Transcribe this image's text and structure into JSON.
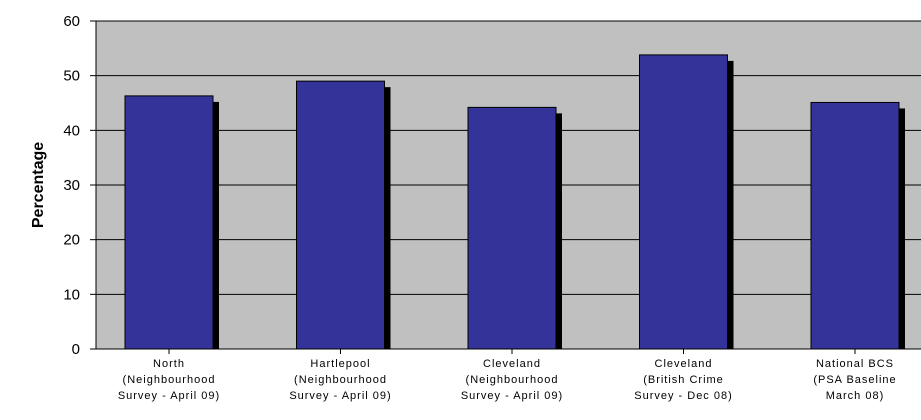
{
  "chart_data": {
    "type": "bar",
    "categories": [
      [
        "North",
        "(Neighbourhood",
        "Survey - April 09)"
      ],
      [
        "Hartlepool",
        "(Neighbourhood",
        "Survey - April 09)"
      ],
      [
        "Cleveland",
        "(Neighbourhood",
        "Survey - April 09)"
      ],
      [
        "Cleveland",
        "(British Crime",
        "Survey - Dec 08)"
      ],
      [
        "National BCS",
        "(PSA Baseline",
        "March 08)"
      ]
    ],
    "values": [
      46.3,
      49,
      44.2,
      53.8,
      45.1
    ],
    "title": "",
    "xlabel": "",
    "ylabel": "Percentage",
    "ylim": [
      0,
      60
    ],
    "yticks": [
      0,
      10,
      20,
      30,
      40,
      50,
      60
    ],
    "grid": true,
    "colors": {
      "plot_background": "#c0c0c0",
      "bar_fill": "#333399",
      "bar_shadow": "#000000",
      "gridline": "#000000"
    }
  }
}
